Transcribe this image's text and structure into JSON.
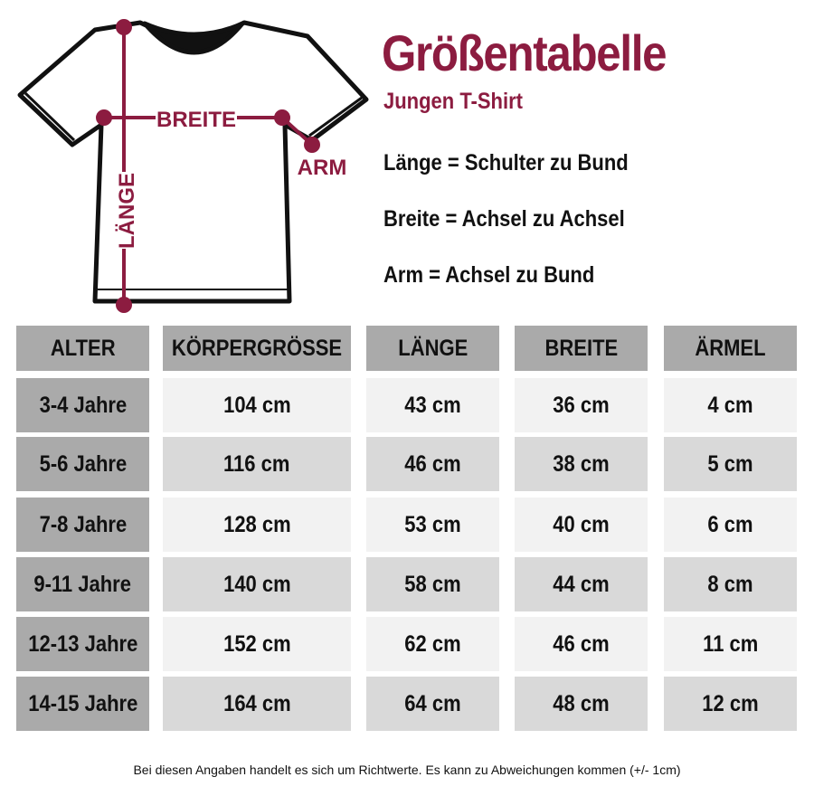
{
  "colors": {
    "accent": "#8c1c40",
    "header_bg": "#aaaaaa",
    "row_light": "#f2f2f2",
    "row_dark": "#d9d9d9"
  },
  "diagram": {
    "breite": "BREITE",
    "arm": "ARM",
    "laenge": "LÄNGE"
  },
  "title": "Größentabelle",
  "subtitle": "Jungen T-Shirt",
  "definitions": [
    "Länge = Schulter zu Bund",
    "Breite = Achsel zu Achsel",
    "Arm = Achsel zu Bund"
  ],
  "table": {
    "headers": [
      "ALTER",
      "KÖRPERGRÖSSE",
      "LÄNGE",
      "BREITE",
      "ÄRMEL"
    ],
    "rows": [
      [
        "3-4 Jahre",
        "104 cm",
        "43 cm",
        "36 cm",
        "4 cm"
      ],
      [
        "5-6 Jahre",
        "116 cm",
        "46 cm",
        "38 cm",
        "5 cm"
      ],
      [
        "7-8 Jahre",
        "128 cm",
        "53 cm",
        "40 cm",
        "6 cm"
      ],
      [
        "9-11 Jahre",
        "140 cm",
        "58 cm",
        "44 cm",
        "8 cm"
      ],
      [
        "12-13 Jahre",
        "152 cm",
        "62 cm",
        "46 cm",
        "11 cm"
      ],
      [
        "14-15 Jahre",
        "164 cm",
        "64 cm",
        "48 cm",
        "12 cm"
      ]
    ]
  },
  "footer": "Bei diesen Angaben handelt es sich um Richtwerte. Es kann zu Abweichungen kommen (+/- 1cm)"
}
